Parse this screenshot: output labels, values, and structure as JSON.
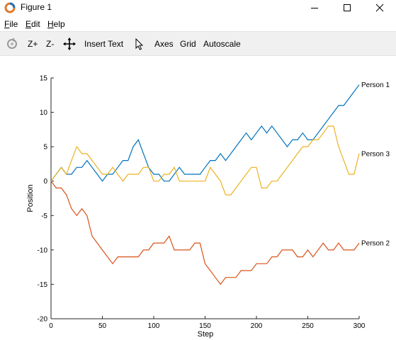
{
  "window": {
    "title": "Figure 1"
  },
  "menu": {
    "items": [
      {
        "label": "File",
        "accel": "F",
        "rest": "ile"
      },
      {
        "label": "Edit",
        "accel": "E",
        "rest": "dit"
      },
      {
        "label": "Help",
        "accel": "H",
        "rest": "elp"
      }
    ]
  },
  "toolbar": {
    "zoom_in": "Z+",
    "zoom_out": "Z-",
    "insert_text": "Insert Text",
    "axes": "Axes",
    "grid": "Grid",
    "autoscale": "Autoscale"
  },
  "colors": {
    "person1": "#0072bd",
    "person2": "#d95319",
    "person3": "#edb120"
  },
  "chart_data": {
    "type": "line",
    "title": "",
    "xlabel": "Step",
    "ylabel": "Position",
    "xlim": [
      0,
      300
    ],
    "ylim": [
      -20,
      15
    ],
    "xticks": [
      "0",
      "50",
      "100",
      "150",
      "200",
      "250",
      "300"
    ],
    "yticks": [
      "15",
      "10",
      "5",
      "0",
      "-5",
      "-10",
      "-15",
      "-20"
    ],
    "grid": false,
    "x": [
      0,
      5,
      10,
      15,
      20,
      25,
      30,
      35,
      40,
      45,
      50,
      55,
      60,
      65,
      70,
      75,
      80,
      85,
      90,
      95,
      100,
      105,
      110,
      115,
      120,
      125,
      130,
      135,
      140,
      145,
      150,
      155,
      160,
      165,
      170,
      175,
      180,
      185,
      190,
      195,
      200,
      205,
      210,
      215,
      220,
      225,
      230,
      235,
      240,
      245,
      250,
      255,
      260,
      265,
      270,
      275,
      280,
      285,
      290,
      295,
      300
    ],
    "series": [
      {
        "name": "Person 1",
        "values": [
          0,
          1,
          2,
          1,
          1,
          2,
          2,
          3,
          2,
          1,
          0,
          1,
          1,
          2,
          3,
          3,
          5,
          6,
          4,
          2,
          1,
          1,
          0,
          0,
          1,
          2,
          1,
          1,
          1,
          1,
          2,
          3,
          3,
          4,
          3,
          4,
          5,
          6,
          7,
          6,
          7,
          8,
          7,
          8,
          7,
          6,
          5,
          6,
          6,
          7,
          6,
          6,
          7,
          8,
          9,
          10,
          11,
          11,
          12,
          13,
          14
        ]
      },
      {
        "name": "Person 2",
        "values": [
          0,
          -1,
          -1,
          -2,
          -4,
          -5,
          -4,
          -5,
          -8,
          -9,
          -10,
          -11,
          -12,
          -11,
          -11,
          -11,
          -11,
          -11,
          -10,
          -10,
          -9,
          -9,
          -9,
          -8,
          -10,
          -10,
          -10,
          -10,
          -9,
          -9,
          -12,
          -13,
          -14,
          -15,
          -14,
          -14,
          -14,
          -13,
          -13,
          -13,
          -12,
          -12,
          -12,
          -11,
          -11,
          -10,
          -10,
          -10,
          -11,
          -11,
          -10,
          -11,
          -10,
          -9,
          -10,
          -10,
          -9,
          -10,
          -10,
          -10,
          -9
        ]
      },
      {
        "name": "Person 3",
        "values": [
          0,
          1,
          2,
          1,
          3,
          5,
          4,
          4,
          3,
          2,
          1,
          1,
          2,
          1,
          0,
          1,
          1,
          1,
          2,
          2,
          0,
          0,
          1,
          1,
          2,
          0,
          0,
          0,
          0,
          0,
          0,
          2,
          1,
          0,
          -2,
          -2,
          -1,
          0,
          1,
          2,
          2,
          -1,
          -1,
          0,
          0,
          1,
          2,
          3,
          4,
          5,
          5,
          6,
          6,
          7,
          8,
          8,
          5,
          3,
          1,
          1,
          4
        ]
      }
    ]
  }
}
